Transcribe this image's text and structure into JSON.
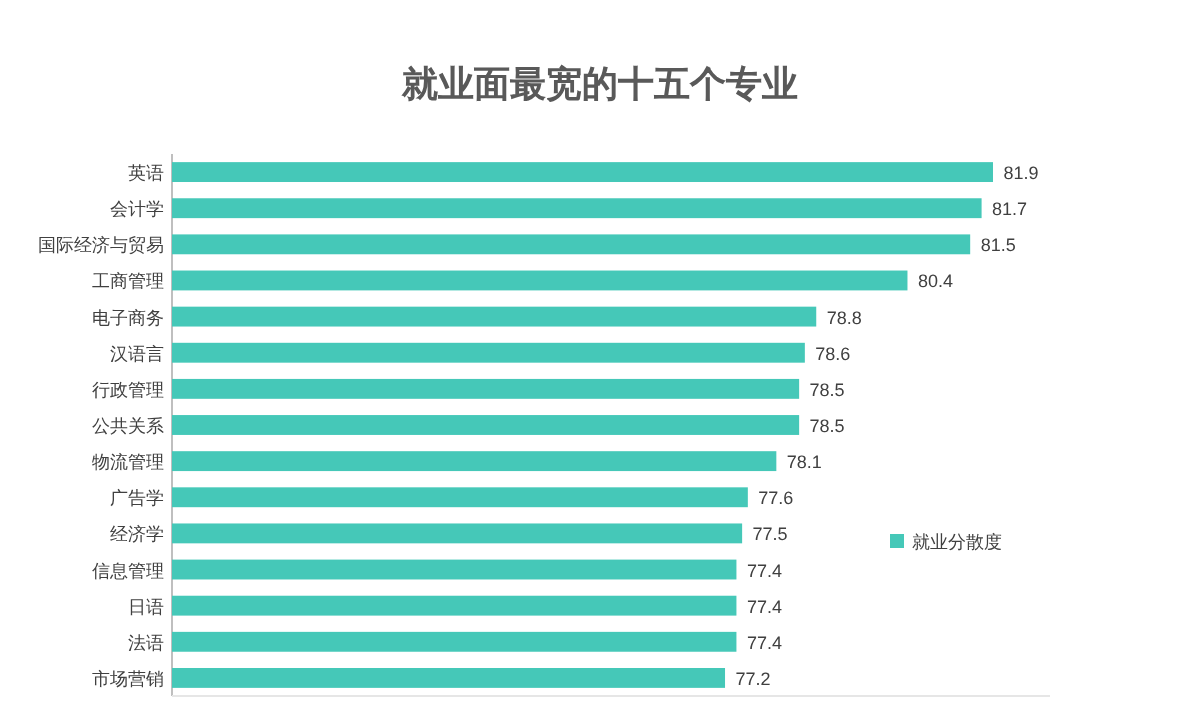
{
  "chart_data": {
    "type": "bar",
    "orientation": "horizontal",
    "title": "就业面最宽的十五个专业",
    "categories": [
      "英语",
      "会计学",
      "国际经济与贸易",
      "工商管理",
      "电子商务",
      "汉语言",
      "行政管理",
      "公共关系",
      "物流管理",
      "广告学",
      "经济学",
      "信息管理",
      "日语",
      "法语",
      "市场营销"
    ],
    "series": [
      {
        "name": "就业分散度",
        "color": "#45c8b8",
        "values": [
          81.9,
          81.7,
          81.5,
          80.4,
          78.8,
          78.6,
          78.5,
          78.5,
          78.1,
          77.6,
          77.5,
          77.4,
          77.4,
          77.4,
          77.2
        ]
      }
    ],
    "xlim": [
      67.5,
      82.9
    ],
    "data_labels": true,
    "legend": "bottom right"
  }
}
